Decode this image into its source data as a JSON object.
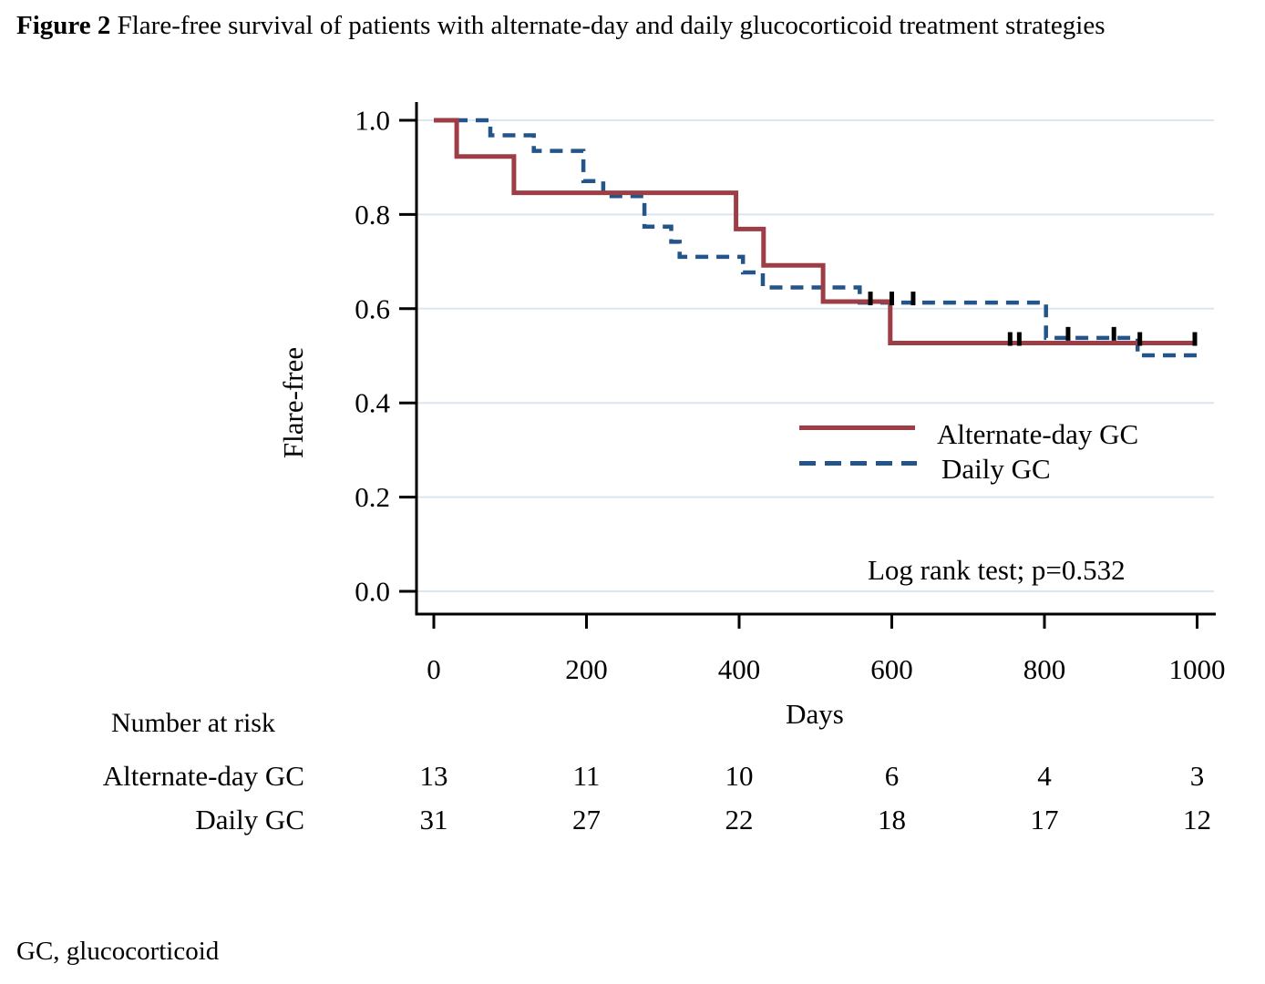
{
  "figure_title": {
    "label": "Figure 2",
    "text": "Flare-free survival of patients with alternate-day and daily glucocorticoid treatment strategies"
  },
  "footnote": "GC, glucocorticoid",
  "risk_table": {
    "header": "Number at risk",
    "times": [
      0,
      200,
      400,
      600,
      800,
      1000
    ],
    "rows": [
      {
        "label": "Alternate-day GC",
        "values": [
          "13",
          "11",
          "10",
          "6",
          "4",
          "3"
        ]
      },
      {
        "label": "Daily GC",
        "values": [
          "31",
          "27",
          "22",
          "18",
          "17",
          "12"
        ]
      }
    ]
  },
  "chart_data": {
    "type": "line",
    "subtype": "kaplan_meier_step",
    "title": "",
    "xlabel": "Days",
    "ylabel": "Flare-free",
    "xlim": [
      0,
      1000
    ],
    "ylim": [
      0.0,
      1.0
    ],
    "x_ticks": [
      "0",
      "200",
      "400",
      "600",
      "800",
      "1000"
    ],
    "y_ticks": [
      "0.0",
      "0.2",
      "0.4",
      "0.6",
      "0.8",
      "1.0"
    ],
    "grid": "horizontal",
    "grid_color": "#dbe6f1",
    "axis_color": "#000000",
    "annotation": "Log rank test; p=0.532",
    "legend": {
      "position": "center-right",
      "entries": [
        {
          "label": "Alternate-day GC",
          "style": "solid",
          "color": "#9d3d46"
        },
        {
          "label": "Daily GC",
          "style": "dashed",
          "color": "#24558a"
        }
      ]
    },
    "series": [
      {
        "name": "Alternate-day GC",
        "style": "solid",
        "color": "#9d3d46",
        "steps": [
          [
            0,
            1.0
          ],
          [
            30,
            1.0
          ],
          [
            30,
            0.923
          ],
          [
            105,
            0.923
          ],
          [
            105,
            0.846
          ],
          [
            396,
            0.846
          ],
          [
            396,
            0.769
          ],
          [
            432,
            0.769
          ],
          [
            432,
            0.692
          ],
          [
            510,
            0.692
          ],
          [
            510,
            0.615
          ],
          [
            598,
            0.615
          ],
          [
            598,
            0.527
          ],
          [
            1000,
            0.527
          ]
        ],
        "censor_ticks": [
          [
            755,
            0.527
          ],
          [
            767,
            0.527
          ],
          [
            925,
            0.527
          ],
          [
            997,
            0.527
          ]
        ]
      },
      {
        "name": "Daily GC",
        "style": "dashed",
        "color": "#24558a",
        "steps": [
          [
            0,
            1.0
          ],
          [
            74,
            1.0
          ],
          [
            74,
            0.968
          ],
          [
            131,
            0.968
          ],
          [
            131,
            0.935
          ],
          [
            196,
            0.935
          ],
          [
            196,
            0.871
          ],
          [
            222,
            0.871
          ],
          [
            222,
            0.839
          ],
          [
            276,
            0.839
          ],
          [
            276,
            0.774
          ],
          [
            311,
            0.774
          ],
          [
            311,
            0.742
          ],
          [
            322,
            0.742
          ],
          [
            322,
            0.71
          ],
          [
            405,
            0.71
          ],
          [
            405,
            0.677
          ],
          [
            431,
            0.677
          ],
          [
            431,
            0.645
          ],
          [
            558,
            0.645
          ],
          [
            558,
            0.613
          ],
          [
            802,
            0.613
          ],
          [
            802,
            0.538
          ],
          [
            922,
            0.538
          ],
          [
            922,
            0.501
          ],
          [
            1000,
            0.501
          ]
        ],
        "censor_ticks": [
          [
            572,
            0.613
          ],
          [
            600,
            0.613
          ],
          [
            628,
            0.613
          ],
          [
            831,
            0.538
          ],
          [
            891,
            0.538
          ]
        ]
      }
    ]
  }
}
